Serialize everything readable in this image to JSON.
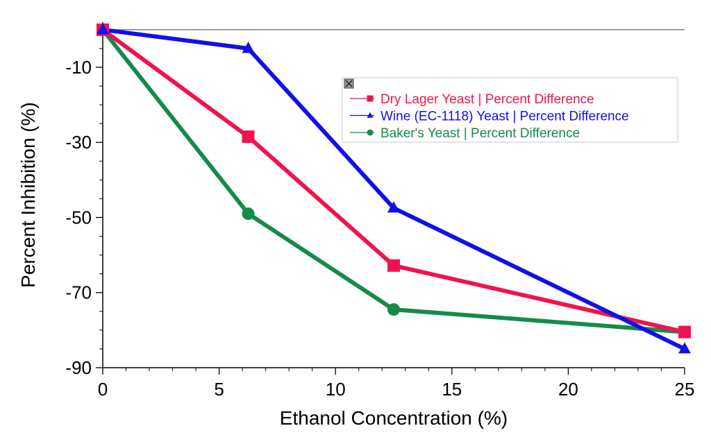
{
  "chart_data": {
    "type": "line",
    "title": "",
    "xlabel": "Ethanol Concentration  (%)",
    "ylabel": "Percent Inhibition (%)",
    "xlim": [
      0,
      25
    ],
    "ylim": [
      -90,
      0
    ],
    "xticks": [
      0,
      5,
      10,
      15,
      20,
      25
    ],
    "yticks": [
      -10,
      -30,
      -50,
      -70,
      -90
    ],
    "xtick_labels": [
      "0",
      "5",
      "10",
      "15",
      "20",
      "25"
    ],
    "ytick_labels": [
      "-10",
      "-30",
      "-50",
      "-70",
      "-90"
    ],
    "grid": false,
    "reference_line_y": 0,
    "legend_position": "upper-right",
    "series": [
      {
        "name": "Dry Lager Yeast | Percent Difference",
        "color": "#f0134d",
        "marker": "square",
        "x": [
          0,
          6.25,
          12.5,
          25
        ],
        "y": [
          0,
          -28.5,
          -62.8,
          -80.5
        ]
      },
      {
        "name": "Wine (EC-1118) Yeast  | Percent Difference",
        "color": "#1010e8",
        "marker": "triangle",
        "x": [
          0,
          6.25,
          12.5,
          25
        ],
        "y": [
          0,
          -5,
          -47.5,
          -85
        ]
      },
      {
        "name": "Baker's Yeast  | Percent Difference",
        "color": "#148b4b",
        "marker": "circle",
        "x": [
          0,
          6.25,
          12.5,
          25
        ],
        "y": [
          0,
          -49,
          -74.5,
          -80.5
        ]
      }
    ]
  }
}
